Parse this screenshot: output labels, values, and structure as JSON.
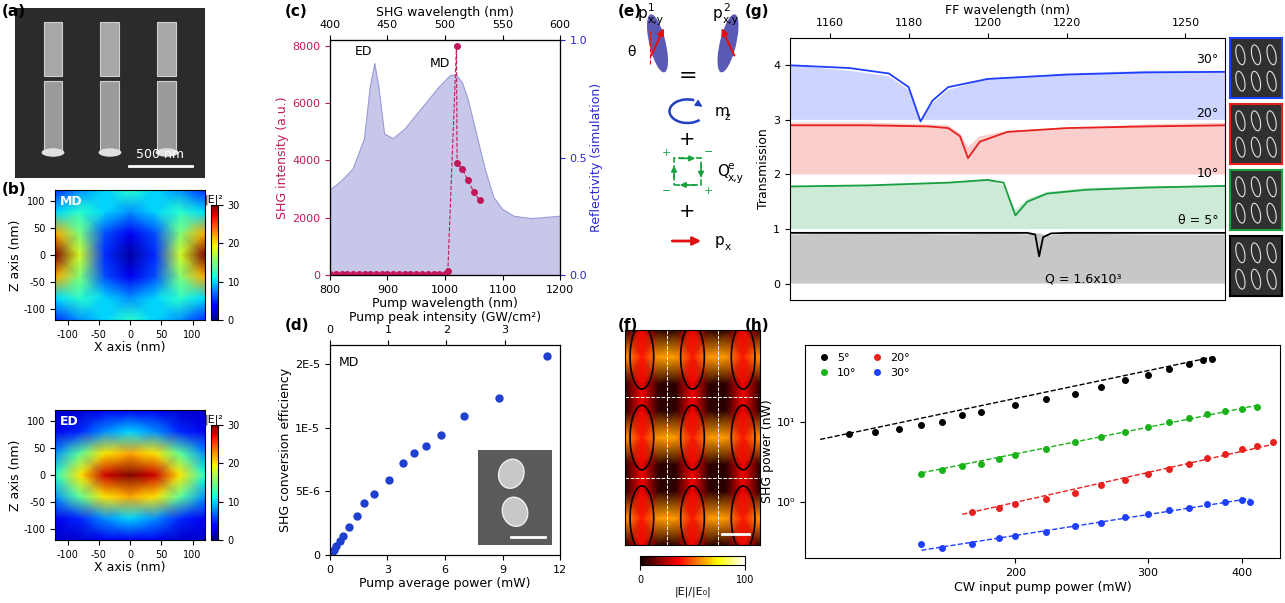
{
  "chart_data": [
    {
      "type": "heatmap",
      "panel_label": "(b)",
      "annotation": "MD",
      "xlabel": "X axis (nm)",
      "ylabel": "Z axis (nm)",
      "x": [
        -120,
        -80,
        -40,
        0,
        40,
        80,
        120
      ],
      "y": [
        -120,
        -80,
        -40,
        0,
        40,
        80,
        120
      ],
      "cells": [
        [
          5,
          8,
          10,
          12,
          10,
          8,
          5
        ],
        [
          10,
          12,
          10,
          8,
          10,
          12,
          10
        ],
        [
          22,
          15,
          6,
          3,
          6,
          15,
          22
        ],
        [
          30,
          18,
          5,
          1,
          5,
          18,
          30
        ],
        [
          22,
          15,
          6,
          3,
          6,
          15,
          22
        ],
        [
          10,
          12,
          10,
          8,
          10,
          12,
          10
        ],
        [
          5,
          8,
          10,
          12,
          10,
          8,
          5
        ]
      ],
      "xlim": [
        -120,
        120
      ],
      "ylim": [
        -120,
        120
      ],
      "xticks": [
        -100,
        -50,
        0,
        50,
        100
      ],
      "yticks": [
        -100,
        -50,
        0,
        50,
        100
      ],
      "colorbar_label": "|E|²",
      "colorbar_lim": [
        0,
        30
      ],
      "colorbar_ticks": [
        0,
        10,
        20,
        30
      ]
    },
    {
      "type": "heatmap",
      "annotation": "ED",
      "xlabel": "X axis (nm)",
      "ylabel": "Z axis (nm)",
      "x": [
        -120,
        -80,
        -40,
        0,
        40,
        80,
        120
      ],
      "y": [
        -120,
        -80,
        -40,
        0,
        40,
        80,
        120
      ],
      "cells": [
        [
          2,
          2,
          3,
          3,
          3,
          2,
          2
        ],
        [
          3,
          5,
          8,
          10,
          8,
          5,
          3
        ],
        [
          8,
          14,
          20,
          22,
          20,
          14,
          8
        ],
        [
          12,
          20,
          28,
          30,
          28,
          20,
          12
        ],
        [
          8,
          14,
          20,
          22,
          20,
          14,
          8
        ],
        [
          3,
          5,
          8,
          10,
          8,
          5,
          3
        ],
        [
          2,
          2,
          3,
          3,
          3,
          2,
          2
        ]
      ],
      "xlim": [
        -120,
        120
      ],
      "ylim": [
        -120,
        120
      ],
      "xticks": [
        -100,
        -50,
        0,
        50,
        100
      ],
      "yticks": [
        -100,
        -50,
        0,
        50,
        100
      ],
      "colorbar_label": "|E|²",
      "colorbar_lim": [
        0,
        30
      ],
      "colorbar_ticks": [
        0,
        10,
        20,
        30
      ]
    },
    {
      "type": "scatter",
      "panel_label": "(c)",
      "xlabel": "Pump wavelength (nm)",
      "ylabel": "SHG intensity (a.u.)",
      "y2label": "Reflectivity (simulation)",
      "x2label": "SHG wavelength (nm)",
      "xlim": [
        800,
        1200
      ],
      "xticks": [
        800,
        900,
        1000,
        1100,
        1200
      ],
      "ylim": [
        0,
        8200
      ],
      "yticks": [
        0,
        2000,
        4000,
        6000,
        8000
      ],
      "y2lim": [
        0,
        1
      ],
      "y2ticks": [
        {
          "value": 0,
          "label": "0.0"
        },
        {
          "value": 0.5,
          "label": "0.5"
        },
        {
          "value": 1,
          "label": "1.0"
        }
      ],
      "x2lim": [
        400,
        600
      ],
      "x2ticks": [
        400,
        450,
        500,
        550,
        600
      ],
      "annotations": [
        "ED",
        "MD"
      ],
      "series": [
        {
          "type": "scatter",
          "color": "#c2185b",
          "marker": "o",
          "line_style": "dashed",
          "x": [
            800,
            810,
            820,
            830,
            840,
            850,
            860,
            870,
            880,
            890,
            900,
            910,
            920,
            930,
            940,
            950,
            960,
            970,
            980,
            990,
            1000,
            1005,
            1020,
            1021,
            1030,
            1040,
            1050,
            1060
          ],
          "values": [
            30,
            30,
            30,
            30,
            30,
            30,
            30,
            30,
            30,
            30,
            30,
            30,
            30,
            30,
            30,
            30,
            30,
            30,
            30,
            30,
            30,
            150,
            8000,
            3900,
            3700,
            3300,
            2900,
            2600
          ]
        },
        {
          "type": "area",
          "axis": "y2",
          "color": "#9a9ad8",
          "x": [
            800,
            820,
            840,
            860,
            870,
            878,
            885,
            895,
            910,
            930,
            950,
            970,
            990,
            1010,
            1020,
            1030,
            1040,
            1055,
            1070,
            1085,
            1100,
            1120,
            1150,
            1200
          ],
          "values": [
            0.36,
            0.4,
            0.45,
            0.58,
            0.8,
            0.9,
            0.8,
            0.6,
            0.58,
            0.62,
            0.68,
            0.74,
            0.8,
            0.85,
            0.85,
            0.82,
            0.75,
            0.6,
            0.45,
            0.33,
            0.28,
            0.25,
            0.24,
            0.25
          ]
        }
      ]
    },
    {
      "type": "scatter",
      "panel_label": "(d)",
      "annotation": "MD",
      "xlabel": "Pump average power (mW)",
      "ylabel": "SHG conversion efficiency",
      "x2label": "Pump peak intensity (GW/cm²)",
      "xlim": [
        0,
        12
      ],
      "xticks": [
        0,
        3,
        6,
        9,
        12
      ],
      "ylim": [
        0,
        1.65e-05
      ],
      "yticks": [
        0,
        {
          "value": 5e-06,
          "label": "5E-6"
        },
        {
          "value": 1e-05,
          "label": "1E-5"
        },
        {
          "value": 1.5e-05,
          "label": "2E-5"
        }
      ],
      "x2lim": [
        0,
        3.95
      ],
      "x2ticks": [
        0,
        1,
        2,
        3
      ],
      "series": [
        {
          "color": "#1f3fd0",
          "marker": "o",
          "x": [
            0.1,
            0.2,
            0.3,
            0.5,
            0.7,
            1.0,
            1.4,
            1.8,
            2.3,
            3.1,
            3.8,
            4.4,
            5.0,
            5.8,
            7.0,
            8.8,
            11.3
          ],
          "values": [
            2e-07,
            4e-07,
            7e-07,
            1.1e-06,
            1.5e-06,
            2.2e-06,
            3.1e-06,
            4.1e-06,
            4.8e-06,
            5.9e-06,
            7.2e-06,
            8e-06,
            8.6e-06,
            9.4e-06,
            1.09e-05,
            1.23e-05,
            1.56e-05
          ]
        }
      ]
    },
    {
      "type": "heatmap",
      "panel_label": "(f)",
      "tick_labels": false,
      "cells": [
        [
          5,
          35,
          5,
          5,
          35,
          5,
          5,
          35,
          5
        ],
        [
          60,
          40,
          60,
          60,
          40,
          60,
          60,
          40,
          60
        ],
        [
          5,
          35,
          5,
          5,
          35,
          5,
          5,
          35,
          5
        ],
        [
          5,
          35,
          5,
          5,
          35,
          5,
          5,
          35,
          5
        ],
        [
          60,
          40,
          60,
          60,
          40,
          60,
          60,
          40,
          60
        ],
        [
          5,
          35,
          5,
          5,
          35,
          5,
          5,
          35,
          5
        ],
        [
          5,
          35,
          5,
          5,
          35,
          5,
          5,
          35,
          5
        ],
        [
          60,
          40,
          60,
          60,
          40,
          60,
          60,
          40,
          60
        ],
        [
          5,
          35,
          5,
          5,
          35,
          5,
          5,
          35,
          5
        ]
      ],
      "colorbar_label": "|E|/|E₀|",
      "colorbar_lim": [
        0,
        100
      ],
      "colorbar_ticks": [
        0,
        100
      ]
    },
    {
      "type": "line",
      "panel_label": "(g)",
      "xlabel": "FF wavelength (nm)",
      "ylabel": "Transmission",
      "xlim": [
        1150,
        1260
      ],
      "xticks": [
        1160,
        1180,
        1200,
        1220,
        1250
      ],
      "ylim": [
        -0.3,
        4.5
      ],
      "yticks": [
        0,
        1,
        2,
        3,
        4
      ],
      "series": [
        {
          "name": "30°",
          "color": "#1f3fff",
          "baseline": 3,
          "x": [
            1150,
            1165,
            1175,
            1180,
            1183,
            1186,
            1190,
            1200,
            1220,
            1240,
            1260
          ],
          "values": [
            4.0,
            3.95,
            3.85,
            3.6,
            2.97,
            3.35,
            3.6,
            3.75,
            3.83,
            3.87,
            3.88
          ],
          "fill_values": [
            4.0,
            3.9,
            3.8,
            3.55,
            3.0,
            3.3,
            3.55,
            3.75,
            3.85,
            3.9,
            3.9
          ]
        },
        {
          "name": "20°",
          "color": "#e8201e",
          "baseline": 2,
          "x": [
            1150,
            1170,
            1185,
            1190,
            1193,
            1195,
            1198,
            1205,
            1220,
            1240,
            1260
          ],
          "values": [
            2.9,
            2.9,
            2.88,
            2.85,
            2.7,
            2.3,
            2.6,
            2.78,
            2.85,
            2.88,
            2.9
          ],
          "fill_values": [
            2.95,
            2.95,
            2.92,
            2.9,
            2.75,
            2.5,
            2.7,
            2.8,
            2.85,
            2.92,
            2.95
          ]
        },
        {
          "name": "10°",
          "color": "#18a040",
          "baseline": 1,
          "x": [
            1150,
            1170,
            1190,
            1200,
            1204,
            1207,
            1210,
            1215,
            1225,
            1240,
            1260
          ],
          "values": [
            1.78,
            1.8,
            1.85,
            1.9,
            1.85,
            1.25,
            1.5,
            1.65,
            1.72,
            1.76,
            1.79
          ],
          "fill_values": [
            1.78,
            1.8,
            1.85,
            1.92,
            1.8,
            1.35,
            1.55,
            1.68,
            1.75,
            1.78,
            1.8
          ]
        },
        {
          "name": "θ = 5°",
          "color": "#000000",
          "baseline": 0,
          "annotation": "Q = 1.6x10³",
          "x": [
            1150,
            1170,
            1190,
            1205,
            1210,
            1212,
            1213,
            1214,
            1216,
            1220,
            1240,
            1260
          ],
          "values": [
            0.93,
            0.93,
            0.93,
            0.93,
            0.93,
            0.9,
            0.5,
            0.85,
            0.92,
            0.93,
            0.93,
            0.93
          ],
          "fill_values": [
            0.9,
            0.93,
            0.9,
            0.92,
            0.9,
            0.92,
            0.92,
            0.9,
            0.88,
            0.92,
            0.9,
            0.9
          ]
        }
      ]
    },
    {
      "type": "scatter",
      "panel_label": "(h)",
      "xlabel": "CW input pump power (mW)",
      "ylabel": "SHG power (nW)",
      "log": true,
      "legend": "upper left",
      "xlim": [
        105,
        450
      ],
      "xticks": [
        200,
        300,
        400
      ],
      "ylim": [
        0.2,
        90
      ],
      "yticks": [
        {
          "value": 1,
          "label": "10⁰"
        },
        {
          "value": 10,
          "label": "10¹"
        }
      ],
      "series": [
        {
          "name": "5°",
          "color": "#000000",
          "marker": "o",
          "x": [
            120,
            130,
            140,
            150,
            160,
            170,
            180,
            200,
            220,
            240,
            260,
            280,
            300,
            320,
            340,
            355,
            365
          ],
          "values": [
            7,
            7.5,
            8,
            9,
            10,
            12,
            13,
            16,
            19,
            22,
            27,
            33,
            38,
            45,
            52,
            58,
            60
          ],
          "fit_x": [
            110,
            370
          ],
          "fit_values": [
            6,
            65
          ]
        },
        {
          "name": "10°",
          "color": "#19b319",
          "marker": "o",
          "x": [
            150,
            160,
            170,
            180,
            190,
            200,
            220,
            240,
            260,
            280,
            300,
            320,
            340,
            360,
            380,
            400,
            420
          ],
          "values": [
            2.2,
            2.5,
            2.8,
            3.0,
            3.4,
            3.8,
            4.5,
            5.5,
            6.5,
            7.5,
            8.5,
            10,
            11,
            12.5,
            13.5,
            14.5,
            15
          ],
          "fit_x": [
            150,
            420
          ],
          "fit_values": [
            2.3,
            16
          ]
        },
        {
          "name": "20°",
          "color": "#e8201e",
          "marker": "o",
          "x": [
            175,
            190,
            200,
            220,
            240,
            260,
            280,
            300,
            320,
            340,
            360,
            380,
            400,
            420,
            440
          ],
          "values": [
            0.75,
            0.85,
            0.95,
            1.1,
            1.3,
            1.6,
            1.9,
            2.2,
            2.6,
            3.0,
            3.5,
            4.0,
            4.5,
            5.0,
            5.5
          ],
          "fit_x": [
            170,
            440
          ],
          "fit_values": [
            0.7,
            5.2
          ]
        },
        {
          "name": "30°",
          "color": "#1f3fff",
          "marker": "o",
          "x": [
            150,
            160,
            175,
            190,
            200,
            220,
            240,
            260,
            280,
            300,
            320,
            340,
            360,
            380,
            400,
            410
          ],
          "values": [
            0.3,
            0.27,
            0.3,
            0.35,
            0.38,
            0.42,
            0.5,
            0.55,
            0.65,
            0.7,
            0.8,
            0.85,
            0.95,
            1.0,
            1.05,
            1.0
          ],
          "fit_x": [
            150,
            410
          ],
          "fit_values": [
            0.25,
            1.1
          ]
        }
      ]
    }
  ],
  "diagrams": {
    "a": {
      "panel_label": "(a)",
      "scale_bar": "500 nm"
    },
    "e": {
      "panel_label": "(e)",
      "p1": {
        "base": "p",
        "sup": "1",
        "sub": "x,y"
      },
      "p2": {
        "base": "p",
        "sup": "2",
        "sub": "x,y"
      },
      "theta": "θ",
      "equals": "=",
      "plus": "+",
      "minus": "−",
      "mz": {
        "base": "m",
        "sub": "z"
      },
      "Q": {
        "base": "Q",
        "sup": "e",
        "sub": "x,y"
      },
      "px": {
        "base": "p",
        "sub": "x"
      }
    }
  }
}
